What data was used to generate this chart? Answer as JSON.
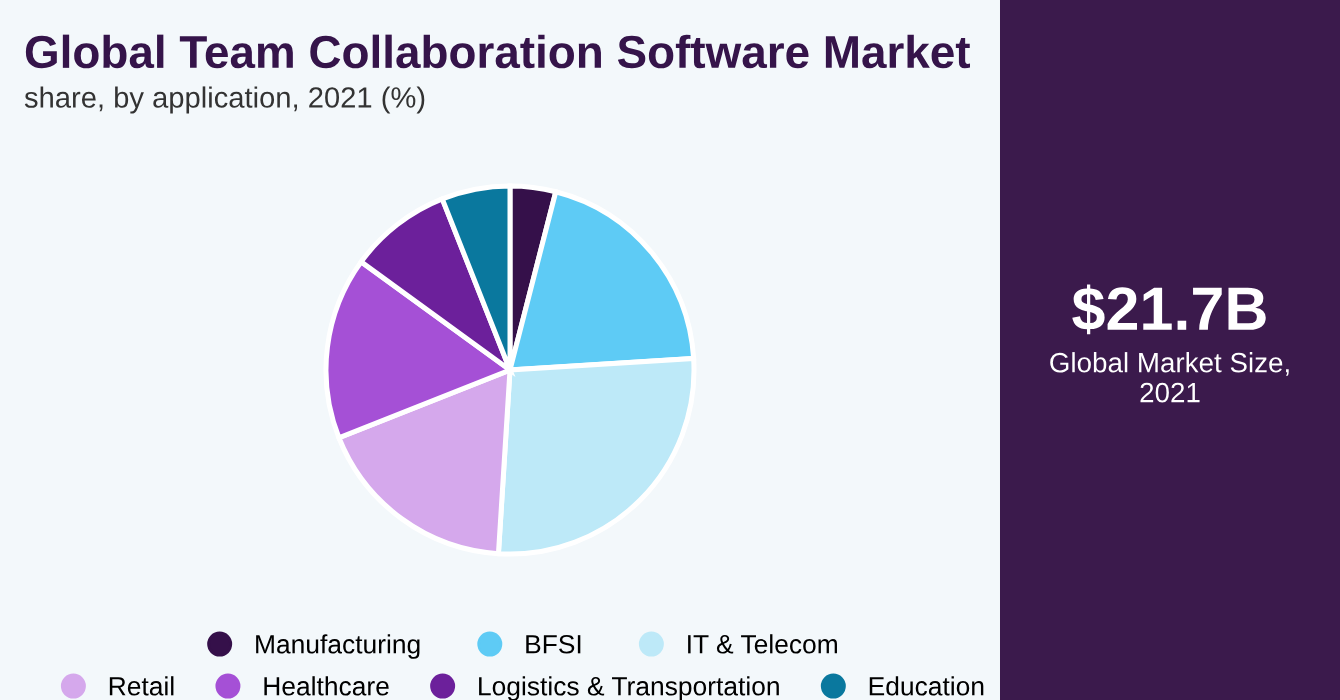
{
  "chart_data": {
    "type": "pie",
    "title": "Global Team Collaboration Software Market",
    "subtitle": "share, by application, 2021 (%)",
    "categories": [
      "Manufacturing",
      "BFSI",
      "IT & Telecom",
      "Retail",
      "Healthcare",
      "Logistics & Transportation",
      "Education"
    ],
    "values": [
      4,
      20,
      27,
      18,
      16,
      9,
      6
    ],
    "colors": [
      "#35104a",
      "#5ecbf5",
      "#bde9f8",
      "#d5a8ec",
      "#a550d6",
      "#6c209b",
      "#0a789e"
    ],
    "legend": "bottom",
    "annotations": [
      "$21.7B",
      "Global Market Size, 2021"
    ]
  }
}
